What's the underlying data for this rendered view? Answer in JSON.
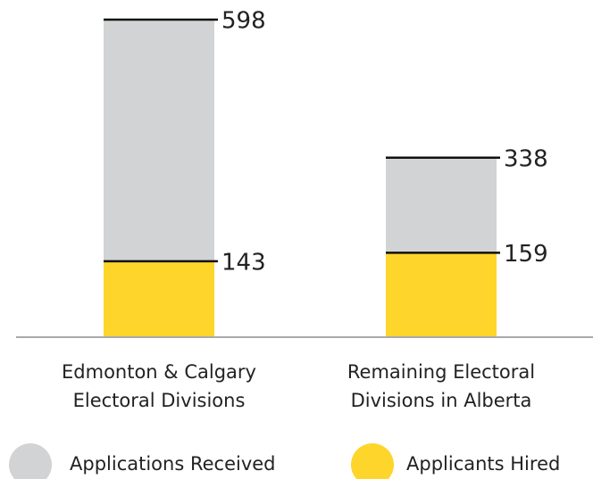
{
  "chart_data": {
    "type": "overlap-bar",
    "categories": [
      [
        "Edmonton & Calgary",
        "Electoral Divisions"
      ],
      [
        "Remaining Electoral",
        "Divisions in Alberta"
      ]
    ],
    "series": [
      {
        "name": "Applications Received",
        "color": "#d1d3d4",
        "values": [
          598,
          338
        ]
      },
      {
        "name": "Applicants Hired",
        "color": "#fed52a",
        "values": [
          143,
          159
        ]
      }
    ]
  }
}
